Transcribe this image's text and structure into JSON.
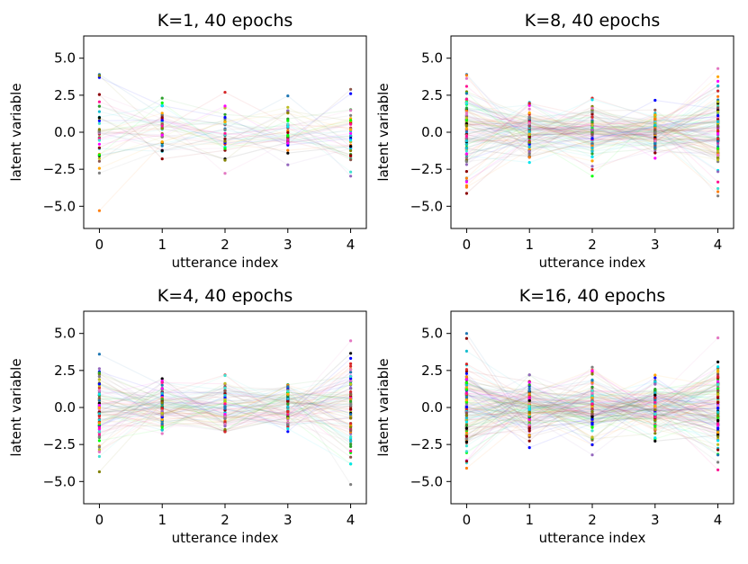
{
  "chart_data": [
    {
      "type": "scatter",
      "title": "K=1, 40 epochs",
      "xlabel": "utterance index",
      "ylabel": "latent variable",
      "x": [
        0,
        1,
        2,
        3,
        4
      ],
      "xticks": [
        "0",
        "1",
        "2",
        "3",
        "4"
      ],
      "yticks": [
        "5.0",
        "2.5",
        "0.0",
        "−2.5",
        "−5.0"
      ],
      "ytick_values": [
        5.0,
        2.5,
        0.0,
        -2.5,
        -5.0
      ],
      "xlim": [
        -0.25,
        4.25
      ],
      "ylim": [
        -6.5,
        6.5
      ],
      "grid": false,
      "seed": 11,
      "traces": 40,
      "spread": [
        1.6,
        0.9,
        1.1,
        0.9,
        1.2
      ],
      "extremes": [
        [
          0,
          3.9
        ],
        [
          0,
          -5.3
        ],
        [
          1,
          2.3
        ],
        [
          2,
          2.7
        ],
        [
          3,
          -2.2
        ],
        [
          4,
          2.9
        ]
      ]
    },
    {
      "type": "scatter",
      "title": "K=8, 40 epochs",
      "xlabel": "utterance index",
      "ylabel": "latent variable",
      "x": [
        0,
        1,
        2,
        3,
        4
      ],
      "xticks": [
        "0",
        "1",
        "2",
        "3",
        "4"
      ],
      "yticks": [
        "5.0",
        "2.5",
        "0.0",
        "−2.5",
        "−5.0"
      ],
      "ytick_values": [
        5.0,
        2.5,
        0.0,
        -2.5,
        -5.0
      ],
      "xlim": [
        -0.25,
        4.25
      ],
      "ylim": [
        -6.5,
        6.5
      ],
      "grid": false,
      "seed": 23,
      "traces": 110,
      "spread": [
        1.5,
        0.8,
        1.0,
        0.7,
        1.5
      ],
      "extremes": [
        [
          0,
          3.9
        ],
        [
          0,
          -3.6
        ],
        [
          1,
          1.9
        ],
        [
          2,
          2.3
        ],
        [
          2,
          -2.3
        ],
        [
          3,
          1.5
        ],
        [
          4,
          4.3
        ],
        [
          4,
          -4.3
        ]
      ]
    },
    {
      "type": "scatter",
      "title": "K=4, 40 epochs",
      "xlabel": "utterance index",
      "ylabel": "latent variable",
      "x": [
        0,
        1,
        2,
        3,
        4
      ],
      "xticks": [
        "0",
        "1",
        "2",
        "3",
        "4"
      ],
      "yticks": [
        "5.0",
        "2.5",
        "0.0",
        "−2.5",
        "−5.0"
      ],
      "ytick_values": [
        5.0,
        2.5,
        0.0,
        -2.5,
        -5.0
      ],
      "xlim": [
        -0.25,
        4.25
      ],
      "ylim": [
        -6.5,
        6.5
      ],
      "grid": false,
      "seed": 37,
      "traces": 90,
      "spread": [
        1.4,
        0.8,
        0.9,
        0.8,
        1.6
      ],
      "extremes": [
        [
          0,
          3.6
        ],
        [
          0,
          -2.6
        ],
        [
          1,
          1.3
        ],
        [
          2,
          2.2
        ],
        [
          2,
          -1.6
        ],
        [
          3,
          1.4
        ],
        [
          4,
          4.5
        ],
        [
          4,
          -5.2
        ]
      ]
    },
    {
      "type": "scatter",
      "title": "K=16, 40 epochs",
      "xlabel": "utterance index",
      "ylabel": "latent variable",
      "x": [
        0,
        1,
        2,
        3,
        4
      ],
      "xticks": [
        "0",
        "1",
        "2",
        "3",
        "4"
      ],
      "yticks": [
        "5.0",
        "2.5",
        "0.0",
        "−2.5",
        "−5.0"
      ],
      "ytick_values": [
        5.0,
        2.5,
        0.0,
        -2.5,
        -5.0
      ],
      "xlim": [
        -0.25,
        4.25
      ],
      "ylim": [
        -6.5,
        6.5
      ],
      "grid": false,
      "seed": 53,
      "traces": 140,
      "spread": [
        1.7,
        0.9,
        1.1,
        0.8,
        1.6
      ],
      "extremes": [
        [
          0,
          5.0
        ],
        [
          0,
          -4.1
        ],
        [
          1,
          2.2
        ],
        [
          2,
          2.4
        ],
        [
          2,
          -3.2
        ],
        [
          3,
          1.8
        ],
        [
          4,
          4.7
        ],
        [
          4,
          -3.7
        ]
      ]
    }
  ],
  "colors": [
    "#1f77b4",
    "#ff7f0e",
    "#2ca02c",
    "#d62728",
    "#9467bd",
    "#8c564b",
    "#e377c2",
    "#7f7f7f",
    "#bcbd22",
    "#17becf",
    "#00e5ee",
    "#ff00ff",
    "#0000ff",
    "#00ff00",
    "#000000",
    "#ffa500",
    "#40e0d0",
    "#8b0000",
    "#808000",
    "#ff1493"
  ]
}
